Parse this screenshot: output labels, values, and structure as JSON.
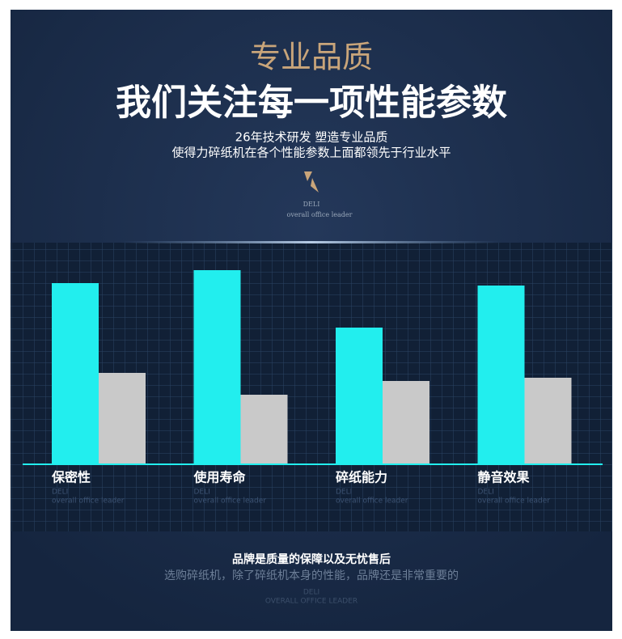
{
  "header": {
    "kicker": "专业品质",
    "title": "我们关注每一项性能参数",
    "lines": [
      "26年技术研发 塑造专业品质",
      "使得力碎纸机在各个性能参数上面都领先于行业水平"
    ],
    "brand": "DELI",
    "tagline": "overall office leader"
  },
  "chart_data": {
    "type": "bar",
    "categories": [
      "保密性",
      "使用寿命",
      "碎纸能力",
      "静音效果"
    ],
    "category_brand": "DELI",
    "category_tagline": "overall office leader",
    "series": [
      {
        "color": "#22eeee",
        "values": [
          223,
          239,
          168,
          220
        ]
      },
      {
        "color": "#c9c9c9",
        "values": [
          112,
          85,
          102,
          106
        ]
      }
    ]
  },
  "footer": {
    "title": "品牌是质量的保障以及无忧售后",
    "text": "选购碎纸机，除了碎纸机本身的性能，品牌还是非常重要的",
    "brand": "DELI",
    "tagline": "OVERALL OFFICE LEADER"
  }
}
